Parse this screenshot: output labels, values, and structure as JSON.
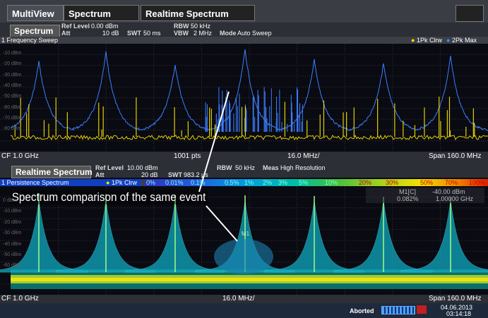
{
  "tabs": [
    "MultiView",
    "Spectrum",
    "Realtime Spectrum"
  ],
  "spectrum_header": {
    "title": "Spectrum",
    "ref_level_label": "Ref Level",
    "ref_level": "0.00 dBm",
    "att_label": "Att",
    "att": "10 dB",
    "swt_label": "SWT",
    "swt": "50 ms",
    "rbw_label": "RBW",
    "rbw": "50 kHz",
    "vbw_label": "VBW",
    "vbw": "2 MHz",
    "mode_label": "Mode",
    "mode": "Auto Sweep"
  },
  "sweep_panel": {
    "title": "1 Frequency Sweep",
    "traces": [
      "1Pk Clrw",
      "2Pk Max"
    ],
    "y_labels": [
      "-10 dBm",
      "-20 dBm",
      "-30 dBm",
      "-40 dBm",
      "-50 dBm",
      "-60 dBm",
      "-70 dBm",
      "-80 dBm"
    ],
    "footer": {
      "cf": "CF 1.0 GHz",
      "points": "1001 pts",
      "div": "16.0 MHz/",
      "span": "Span 160.0 MHz"
    }
  },
  "realtime_header": {
    "title": "Realtime Spectrum",
    "ref_level_label": "Ref Level",
    "ref_level": "10.00 dBm",
    "att_label": "Att",
    "att": "20 dB",
    "swt_label": "SWT",
    "swt": "983.2 µs",
    "rbw_label": "RBW",
    "rbw": "50 kHz",
    "meas_label": "Meas",
    "meas": "High Resolution"
  },
  "persistence_panel": {
    "title": "1 Persistence Spectrum",
    "trace": "1Pk Clrw",
    "color_scale": [
      "0%",
      "0.01%",
      "0.1%",
      "0.5%",
      "1%",
      "2%",
      "3%",
      "5%",
      "10%",
      "20%",
      "30%",
      "50%",
      "70%",
      "100%"
    ],
    "marker": {
      "name": "M1[C]",
      "density": "0.082%",
      "level": "-40.00 dBm",
      "freq": "1.00000 GHz",
      "label": "M1"
    },
    "y_labels": [
      "0 dBm",
      "-10 dBm",
      "-20 dBm",
      "-30 dBm",
      "-40 dBm",
      "-50 dBm",
      "-60 dBm"
    ],
    "footer": {
      "cf": "CF 1.0 GHz",
      "div": "16.0 MHz/",
      "span": "Span 160.0 MHz"
    }
  },
  "annotation": "Spectrum comparison of the same event",
  "status": {
    "state": "Aborted",
    "date": "04.06.2013",
    "time": "03:14:18"
  }
}
